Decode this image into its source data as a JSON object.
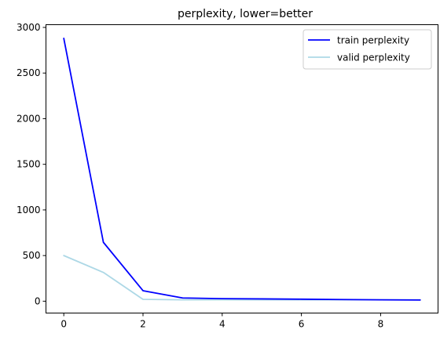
{
  "chart_data": {
    "type": "line",
    "title": "perplexity, lower=better",
    "xlabel": "",
    "ylabel": "",
    "x": [
      0,
      1,
      2,
      3,
      4,
      5,
      6,
      7,
      8,
      9
    ],
    "xlim": [
      -0.45,
      9.45
    ],
    "ylim": [
      -130,
      3030
    ],
    "xticks": [
      0,
      2,
      4,
      6,
      8
    ],
    "yticks": [
      0,
      500,
      1000,
      1500,
      2000,
      2500,
      3000
    ],
    "grid": false,
    "legend_position": "top-right",
    "series": [
      {
        "name": "train perplexity",
        "color": "#0000ff",
        "values": [
          2880,
          645,
          115,
          35,
          28,
          25,
          22,
          18,
          15,
          13
        ]
      },
      {
        "name": "valid perplexity",
        "color": "#add8e6",
        "values": [
          500,
          315,
          20,
          15,
          15,
          15,
          15,
          15,
          15,
          15
        ]
      }
    ]
  }
}
